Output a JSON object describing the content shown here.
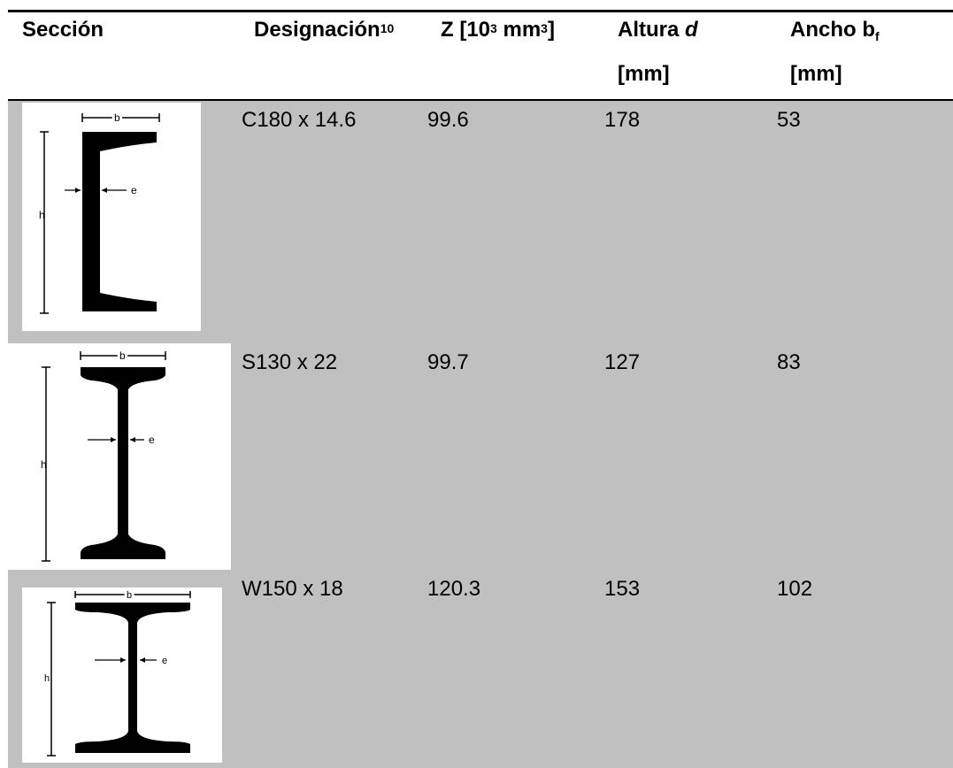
{
  "headers": {
    "seccion": "Sección",
    "designacion": "Designación",
    "designacion_sup": "10",
    "z_prefix": "Z [10",
    "z_sup1": "3",
    "z_mid": " mm",
    "z_sup2": "3",
    "z_suffix": "]",
    "altura": "Altura ",
    "altura_var": "d",
    "altura_unit": "[mm]",
    "ancho": "Ancho b",
    "ancho_sub": "f",
    "ancho_unit": "[mm]"
  },
  "rows": [
    {
      "designacion": "C180 x 14.6",
      "z": "99.6",
      "altura": "178",
      "ancho": "53",
      "labels": {
        "b": "b",
        "e": "e",
        "h": "h"
      }
    },
    {
      "designacion": "S130 x 22",
      "z": "99.7",
      "altura": "127",
      "ancho": "83",
      "labels": {
        "b": "b",
        "e": "e",
        "h": "h"
      }
    },
    {
      "designacion": "W150 x 18",
      "z": "120.3",
      "altura": "153",
      "ancho": "102",
      "labels": {
        "b": "b",
        "e": "e",
        "h": "h"
      }
    }
  ],
  "colors": {
    "shade": "#c0c0c0",
    "rule": "#000000"
  }
}
